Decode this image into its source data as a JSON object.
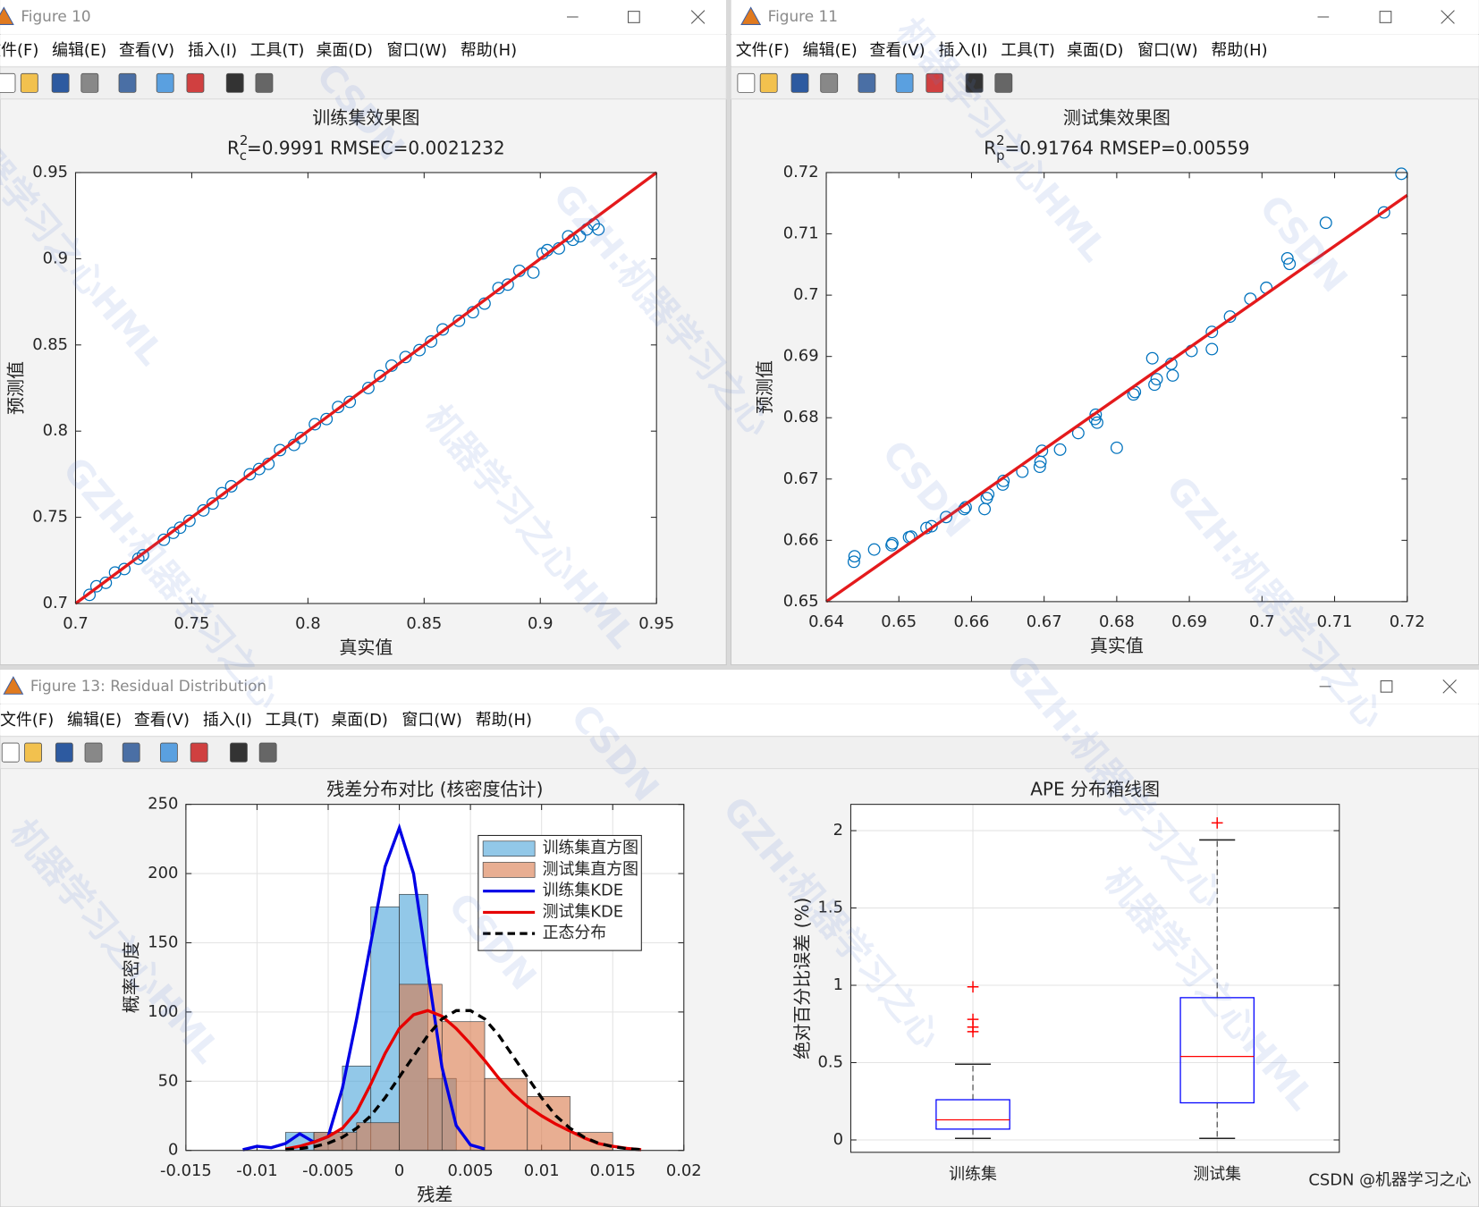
{
  "windows": [
    {
      "title": "Figure 10",
      "menu": [
        "文件(F)",
        "编辑(E)",
        "查看(V)",
        "插入(I)",
        "工具(T)",
        "桌面(D)",
        "窗口(W)",
        "帮助(H)"
      ]
    },
    {
      "title": "Figure 11",
      "menu": [
        "文件(F)",
        "编辑(E)",
        "查看(V)",
        "插入(I)",
        "工具(T)",
        "桌面(D)",
        "窗口(W)",
        "帮助(H)"
      ]
    },
    {
      "title": "Figure 13: Residual Distribution",
      "menu": [
        "文件(F)",
        "编辑(E)",
        "查看(V)",
        "插入(I)",
        "工具(T)",
        "桌面(D)",
        "窗口(W)",
        "帮助(H)"
      ]
    }
  ],
  "watermarks": [
    "机器学习之心HML",
    "CSDN",
    "GZH:机器学习之心"
  ],
  "footer": "CSDN @机器学习之心",
  "chart_data": [
    {
      "type": "scatter",
      "title": "训练集效果图",
      "subtitle": {
        "base": "R",
        "sup": "2",
        "sub": "c",
        "rest": "=0.9991  RMSEC=0.0021232"
      },
      "xlabel": "真实值",
      "ylabel": "预测值",
      "xlim": [
        0.7,
        0.95
      ],
      "ylim": [
        0.7,
        0.95
      ],
      "xticks": [
        0.7,
        0.75,
        0.8,
        0.85,
        0.9,
        0.95
      ],
      "yticks": [
        0.7,
        0.75,
        0.8,
        0.85,
        0.9,
        0.95
      ],
      "series": [
        {
          "type": "scatter",
          "color": "#0072bd",
          "x": [
            0.706,
            0.709,
            0.713,
            0.717,
            0.721,
            0.727,
            0.729,
            0.738,
            0.742,
            0.745,
            0.749,
            0.755,
            0.759,
            0.763,
            0.767,
            0.775,
            0.779,
            0.783,
            0.788,
            0.794,
            0.797,
            0.803,
            0.808,
            0.813,
            0.818,
            0.826,
            0.831,
            0.836,
            0.842,
            0.848,
            0.853,
            0.858,
            0.865,
            0.871,
            0.876,
            0.882,
            0.886,
            0.891,
            0.897,
            0.901,
            0.903,
            0.908,
            0.912,
            0.914,
            0.917,
            0.92,
            0.923,
            0.925
          ],
          "values": [
            0.705,
            0.71,
            0.712,
            0.718,
            0.72,
            0.726,
            0.728,
            0.737,
            0.741,
            0.744,
            0.748,
            0.754,
            0.758,
            0.764,
            0.768,
            0.775,
            0.778,
            0.781,
            0.789,
            0.792,
            0.796,
            0.804,
            0.807,
            0.814,
            0.817,
            0.825,
            0.832,
            0.838,
            0.843,
            0.847,
            0.852,
            0.859,
            0.864,
            0.869,
            0.874,
            0.883,
            0.885,
            0.893,
            0.892,
            0.903,
            0.905,
            0.906,
            0.913,
            0.911,
            0.913,
            0.917,
            0.92,
            0.917
          ]
        },
        {
          "type": "line",
          "color": "#e41a1c",
          "x": [
            0.7,
            0.95
          ],
          "values": [
            0.7,
            0.95
          ]
        }
      ]
    },
    {
      "type": "scatter",
      "title": "测试集效果图",
      "subtitle": {
        "base": "R",
        "sup": "2",
        "sub": "p",
        "rest": "=0.91764  RMSEP=0.00559"
      },
      "xlabel": "真实值",
      "ylabel": "预测值",
      "xlim": [
        0.64,
        0.72
      ],
      "ylim": [
        0.65,
        0.72
      ],
      "xticks": [
        0.64,
        0.65,
        0.66,
        0.67,
        0.68,
        0.69,
        0.7,
        0.71,
        0.72
      ],
      "yticks": [
        0.65,
        0.66,
        0.67,
        0.68,
        0.69,
        0.7,
        0.71,
        0.72
      ],
      "series": [
        {
          "type": "scatter",
          "color": "#0072bd",
          "x": [
            0.6438,
            0.6439,
            0.6466,
            0.649,
            0.6491,
            0.6514,
            0.6517,
            0.6538,
            0.6545,
            0.6565,
            0.659,
            0.6592,
            0.6618,
            0.6621,
            0.6623,
            0.6643,
            0.6644,
            0.667,
            0.6694,
            0.6695,
            0.6697,
            0.6722,
            0.6747,
            0.677,
            0.6771,
            0.6773,
            0.68,
            0.6823,
            0.6825,
            0.6849,
            0.6852,
            0.6855,
            0.6875,
            0.6877,
            0.6903,
            0.6931,
            0.6931,
            0.6956,
            0.6984,
            0.7006,
            0.7035,
            0.7038,
            0.7088,
            0.7168,
            0.7192
          ],
          "values": [
            0.6565,
            0.6574,
            0.6585,
            0.6592,
            0.6595,
            0.6605,
            0.6606,
            0.662,
            0.6623,
            0.6638,
            0.6651,
            0.6654,
            0.6651,
            0.6669,
            0.6675,
            0.6691,
            0.6697,
            0.6712,
            0.672,
            0.6728,
            0.6746,
            0.6748,
            0.6775,
            0.6798,
            0.6805,
            0.6792,
            0.6751,
            0.6838,
            0.6842,
            0.6897,
            0.6854,
            0.6863,
            0.6888,
            0.6869,
            0.6909,
            0.694,
            0.6912,
            0.6965,
            0.6994,
            0.7012,
            0.706,
            0.7051,
            0.7118,
            0.7135,
            0.7198
          ]
        },
        {
          "type": "line",
          "color": "#e41a1c",
          "x": [
            0.64,
            0.72
          ],
          "values": [
            0.65,
            0.7163
          ]
        }
      ]
    },
    {
      "type": "histogram",
      "title": "残差分布对比 (核密度估计)",
      "xlabel": "残差",
      "ylabel": "概率密度",
      "xlim": [
        -0.015,
        0.02
      ],
      "ylim": [
        0,
        250
      ],
      "xticks": [
        -0.015,
        -0.01,
        -0.005,
        0,
        0.005,
        0.01,
        0.015,
        0.02
      ],
      "yticks": [
        0,
        50,
        100,
        150,
        200,
        250
      ],
      "grid": true,
      "legend": "northeast",
      "series": [
        {
          "name": "训练集直方图",
          "type": "histogram",
          "color": "#4aa3d8",
          "bins": [
            -0.008,
            -0.006,
            -0.004,
            -0.002,
            0,
            0.002,
            0.004
          ],
          "values": [
            13,
            13,
            61,
            176,
            185,
            52
          ]
        },
        {
          "name": "测试集直方图",
          "type": "histogram",
          "color": "#d9784a",
          "bins": [
            -0.006,
            -0.003,
            0,
            0.003,
            0.006,
            0.009,
            0.012,
            0.015
          ],
          "values": [
            13,
            20,
            120,
            93,
            52,
            39,
            13
          ]
        },
        {
          "name": "训练集KDE",
          "type": "line",
          "color": "#0000e6",
          "x": [
            -0.012,
            -0.011,
            -0.01,
            -0.009,
            -0.008,
            -0.007,
            -0.006,
            -0.005,
            -0.004,
            -0.003,
            -0.002,
            -0.001,
            0,
            0.001,
            0.002,
            0.003,
            0.004,
            0.005,
            0.006,
            0.007,
            0.008,
            0.009,
            0.01,
            0.011,
            0.012,
            0.013,
            0.014,
            0.015,
            0.016,
            0.017,
            0.018
          ],
          "values": [
            null,
            0.5,
            3,
            2,
            5,
            12,
            6,
            10,
            45,
            95,
            150,
            205,
            233,
            200,
            130,
            60,
            18,
            4,
            1,
            null,
            null,
            null,
            null,
            null,
            null,
            null,
            null,
            null,
            null,
            null,
            null
          ]
        },
        {
          "name": "测试集KDE",
          "type": "line",
          "color": "#e60000",
          "x": [
            -0.012,
            -0.011,
            -0.01,
            -0.009,
            -0.008,
            -0.007,
            -0.006,
            -0.005,
            -0.004,
            -0.003,
            -0.002,
            -0.001,
            0,
            0.001,
            0.002,
            0.003,
            0.004,
            0.005,
            0.006,
            0.007,
            0.008,
            0.009,
            0.01,
            0.011,
            0.012,
            0.013,
            0.014,
            0.015,
            0.016,
            0.017,
            0.018
          ],
          "values": [
            null,
            null,
            null,
            null,
            1,
            3,
            6,
            10,
            16,
            28,
            48,
            70,
            88,
            98,
            101,
            97,
            88,
            77,
            65,
            52,
            41,
            32,
            25,
            19,
            14,
            9,
            5,
            3,
            1.5,
            0.5,
            null
          ]
        },
        {
          "name": "正态分布",
          "type": "line",
          "color": "#000000",
          "linestyle": "dashed",
          "x": [
            -0.012,
            -0.011,
            -0.01,
            -0.009,
            -0.008,
            -0.007,
            -0.006,
            -0.005,
            -0.004,
            -0.003,
            -0.002,
            -0.001,
            0,
            0.001,
            0.002,
            0.003,
            0.004,
            0.005,
            0.006,
            0.007,
            0.008,
            0.009,
            0.01,
            0.011,
            0.012,
            0.013,
            0.014,
            0.015,
            0.016,
            0.017,
            0.018
          ],
          "values": [
            null,
            null,
            null,
            null,
            0.6,
            1.3,
            2.7,
            5.2,
            9.5,
            16,
            25,
            38,
            53,
            68,
            83,
            95,
            101,
            101,
            95,
            83,
            68,
            53,
            38,
            25,
            16,
            9.5,
            5.2,
            2.7,
            1.3,
            0.6,
            null
          ]
        }
      ]
    },
    {
      "type": "boxplot",
      "title": "APE 分布箱线图",
      "ylabel": "绝对百分比误差 (%)",
      "categories": [
        "训练集",
        "测试集"
      ],
      "ylim": [
        -0.08,
        2.17
      ],
      "yticks": [
        0,
        0.5,
        1,
        1.5,
        2
      ],
      "grid": true,
      "box_color": "#0000ff",
      "median_color": "#ff0000",
      "boxes": [
        {
          "min": 0.01,
          "q1": 0.07,
          "median": 0.13,
          "q3": 0.26,
          "max": 0.49,
          "outliers": [
            0.7,
            0.73,
            0.78,
            0.99
          ]
        },
        {
          "min": 0.01,
          "q1": 0.24,
          "median": 0.54,
          "q3": 0.92,
          "max": 1.94,
          "outliers": [
            2.05
          ]
        }
      ]
    }
  ]
}
